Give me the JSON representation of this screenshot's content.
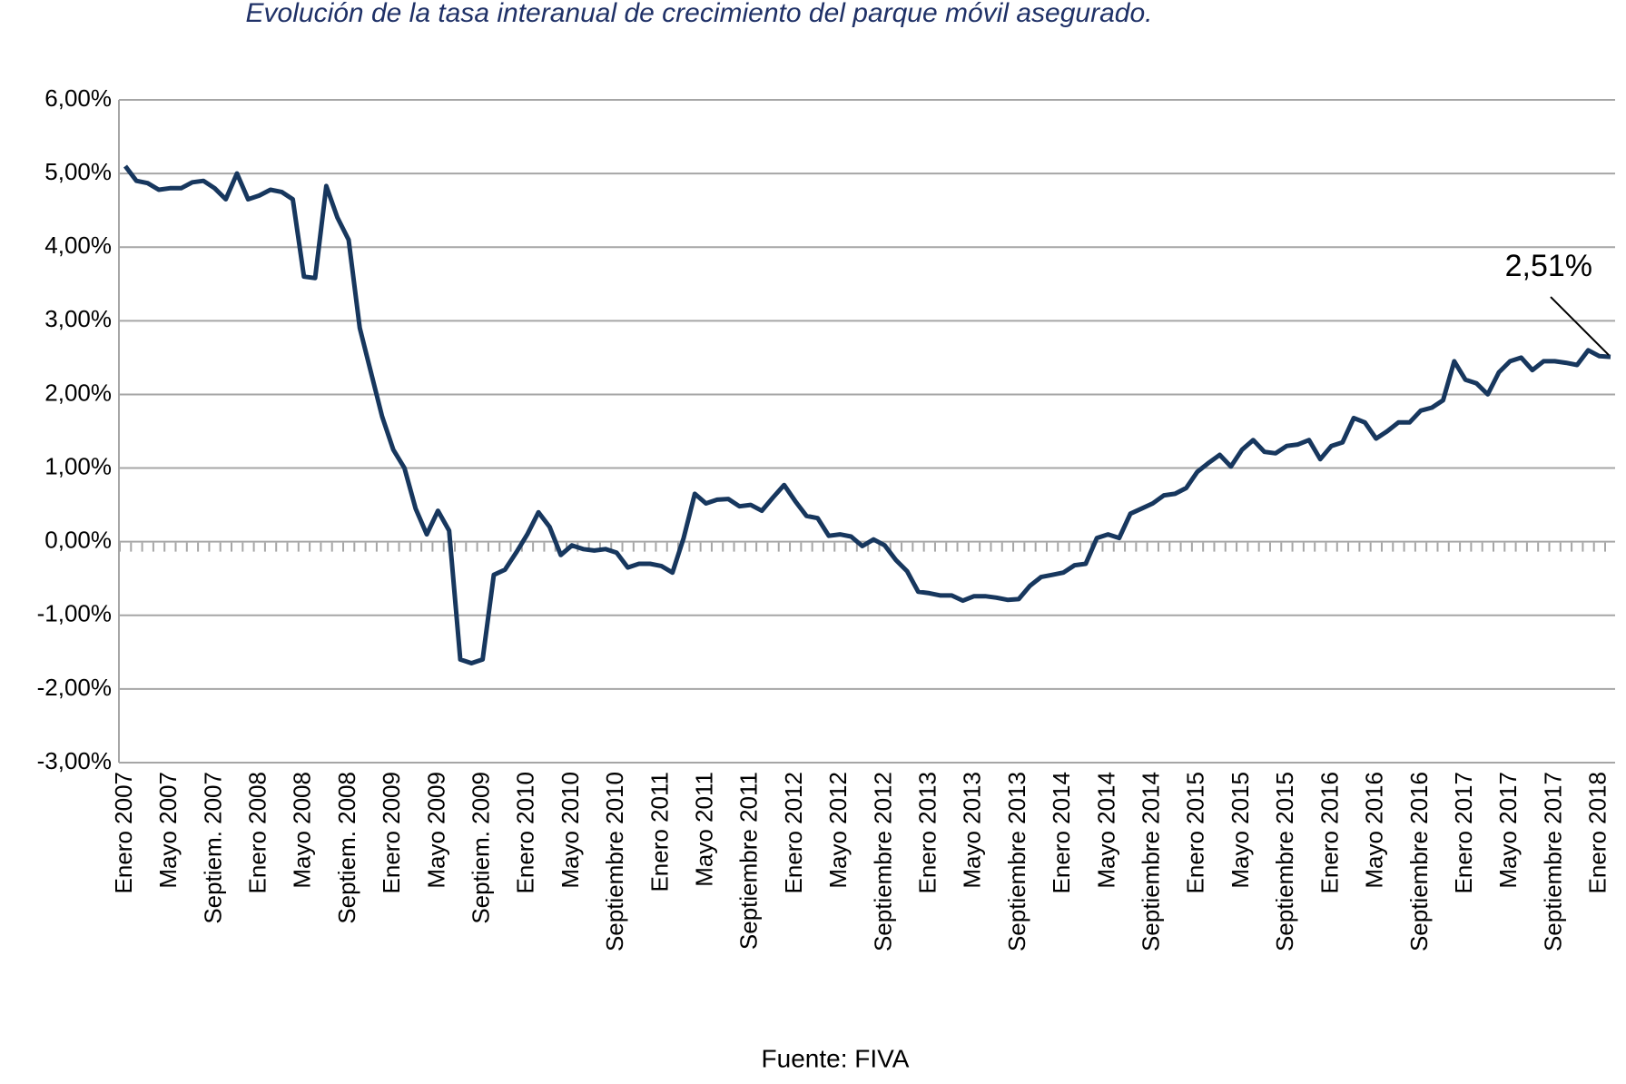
{
  "chart_data": {
    "type": "line",
    "title": "Evolución de la tasa interanual de crecimiento del parque móvil asegurado.",
    "source": "Fuente: FIVA",
    "categories": [
      "Enero 2007",
      null,
      null,
      null,
      "Mayo 2007",
      null,
      null,
      null,
      "Septiem. 2007",
      null,
      null,
      null,
      "Enero 2008",
      null,
      null,
      null,
      "Mayo 2008",
      null,
      null,
      null,
      "Septiem. 2008",
      null,
      null,
      null,
      "Enero 2009",
      null,
      null,
      null,
      "Mayo 2009",
      null,
      null,
      null,
      "Septiem. 2009",
      null,
      null,
      null,
      "Enero 2010",
      null,
      null,
      null,
      "Mayo 2010",
      null,
      null,
      null,
      "Septiembre 2010",
      null,
      null,
      null,
      "Enero 2011",
      null,
      null,
      null,
      "Mayo 2011",
      null,
      null,
      null,
      "Septiembre 2011",
      null,
      null,
      null,
      "Enero 2012",
      null,
      null,
      null,
      "Mayo 2012",
      null,
      null,
      null,
      "Septiembre 2012",
      null,
      null,
      null,
      "Enero 2013",
      null,
      null,
      null,
      "Mayo 2013",
      null,
      null,
      null,
      "Septiembre 2013",
      null,
      null,
      null,
      "Enero 2014",
      null,
      null,
      null,
      "Mayo 2014",
      null,
      null,
      null,
      "Septiembre 2014",
      null,
      null,
      null,
      "Enero 2015",
      null,
      null,
      null,
      "Mayo 2015",
      null,
      null,
      null,
      "Septiembre 2015",
      null,
      null,
      null,
      "Enero 2016",
      null,
      null,
      null,
      "Mayo 2016",
      null,
      null,
      null,
      "Septiembre 2016",
      null,
      null,
      null,
      "Enero 2017",
      null,
      null,
      null,
      "Mayo 2017",
      null,
      null,
      null,
      "Septiembre 2017",
      null,
      null,
      null,
      "Enero 2018",
      null
    ],
    "series": [
      {
        "color": "#17375e",
        "values": [
          5.1,
          4.9,
          4.87,
          4.78,
          4.8,
          4.8,
          4.88,
          4.9,
          4.8,
          4.65,
          5.0,
          4.65,
          4.7,
          4.78,
          4.75,
          4.65,
          3.6,
          3.58,
          4.83,
          4.4,
          4.1,
          2.9,
          2.3,
          1.7,
          1.25,
          1.0,
          0.45,
          0.1,
          0.42,
          0.15,
          -1.6,
          -1.65,
          -1.6,
          -0.45,
          -0.38,
          -0.15,
          0.1,
          0.4,
          0.2,
          -0.18,
          -0.05,
          -0.1,
          -0.12,
          -0.1,
          -0.15,
          -0.35,
          -0.3,
          -0.3,
          -0.33,
          -0.42,
          0.05,
          0.65,
          0.52,
          0.57,
          0.58,
          0.48,
          0.5,
          0.42,
          0.6,
          0.77,
          0.55,
          0.35,
          0.32,
          0.08,
          0.1,
          0.07,
          -0.06,
          0.03,
          -0.05,
          -0.25,
          -0.4,
          -0.68,
          -0.7,
          -0.73,
          -0.73,
          -0.8,
          -0.74,
          -0.74,
          -0.76,
          -0.79,
          -0.78,
          -0.6,
          -0.48,
          -0.45,
          -0.42,
          -0.32,
          -0.3,
          0.05,
          0.1,
          0.05,
          0.38,
          0.45,
          0.52,
          0.63,
          0.65,
          0.73,
          0.95,
          1.07,
          1.18,
          1.02,
          1.25,
          1.38,
          1.22,
          1.2,
          1.3,
          1.32,
          1.38,
          1.12,
          1.3,
          1.35,
          1.68,
          1.62,
          1.4,
          1.5,
          1.62,
          1.62,
          1.78,
          1.82,
          1.92,
          2.45,
          2.2,
          2.15,
          2.0,
          2.3,
          2.45,
          2.5,
          2.33,
          2.45,
          2.45,
          2.43,
          2.4,
          2.6,
          2.52,
          2.51
        ],
        "value_labels": [
          null,
          null,
          null,
          null,
          null,
          null,
          null,
          null,
          null,
          null,
          null,
          null,
          null,
          null,
          null,
          null,
          null,
          null,
          null,
          null,
          null,
          null,
          null,
          null,
          null,
          null,
          null,
          null,
          null,
          null,
          null,
          null,
          null,
          null,
          null,
          null,
          null,
          null,
          null,
          null,
          null,
          null,
          null,
          null,
          null,
          null,
          null,
          null,
          null,
          null,
          null,
          null,
          null,
          null,
          null,
          null,
          null,
          null,
          null,
          null,
          null,
          null,
          null,
          null,
          null,
          null,
          null,
          null,
          null,
          null,
          null,
          null,
          null,
          null,
          null,
          null,
          null,
          null,
          null,
          null,
          null,
          null,
          null,
          null,
          null,
          null,
          null,
          null,
          null,
          null,
          null,
          null,
          null,
          null,
          null,
          null,
          null,
          null,
          null,
          null,
          null,
          null,
          null,
          null,
          null,
          null,
          null,
          null,
          null,
          null,
          null,
          null,
          null,
          null,
          null,
          null,
          null,
          null,
          null,
          null,
          null,
          null,
          null,
          null,
          null,
          null,
          null,
          null,
          null,
          null,
          null,
          null,
          null,
          "2,51%"
        ]
      }
    ],
    "ylim": [
      -3,
      6
    ],
    "yticks": [
      {
        "value": -3,
        "label": "-3,00%"
      },
      {
        "value": -2,
        "label": "-2,00%"
      },
      {
        "value": -1,
        "label": "-1,00%"
      },
      {
        "value": 0,
        "label": "0,00%"
      },
      {
        "value": 1,
        "label": "1,00%"
      },
      {
        "value": 2,
        "label": "2,00%"
      },
      {
        "value": 3,
        "label": "3,00%"
      },
      {
        "value": 4,
        "label": "4,00%"
      },
      {
        "value": 5,
        "label": "5,00%"
      },
      {
        "value": 6,
        "label": "6,00%"
      }
    ],
    "grid": true
  }
}
